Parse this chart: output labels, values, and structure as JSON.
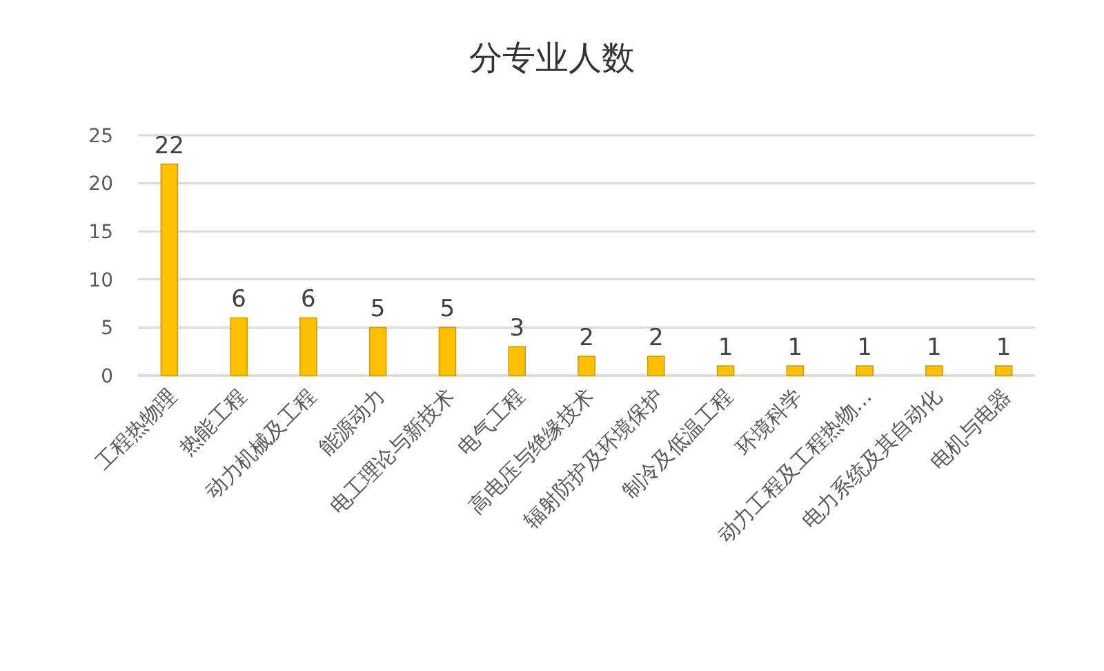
{
  "chart_data": {
    "type": "bar",
    "title": "分专业人数",
    "categories": [
      "工程热物理",
      "热能工程",
      "动力机械及工程",
      "能源动力",
      "电工理论与新技术",
      "电气工程",
      "高电压与绝缘技术",
      "辐射防护及环境保护",
      "制冷及低温工程",
      "环境科学",
      "动力工程及工程热物…",
      "电力系统及其自动化",
      "电机与电器"
    ],
    "values": [
      22,
      6,
      6,
      5,
      5,
      3,
      2,
      2,
      1,
      1,
      1,
      1,
      1
    ],
    "color": "#ffc000",
    "ylim": [
      0,
      25
    ],
    "yticks": [
      0,
      5,
      10,
      15,
      20,
      25
    ],
    "grid": "y",
    "data_labels": true
  }
}
